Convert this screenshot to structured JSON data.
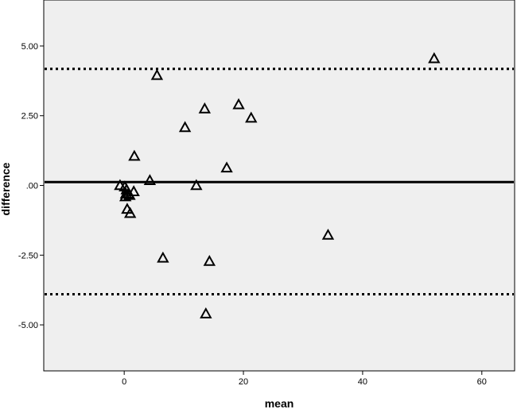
{
  "chart_data": {
    "type": "scatter",
    "title": "",
    "xlabel": "mean",
    "ylabel": "difference",
    "xlim": [
      -13.5,
      65.5
    ],
    "ylim": [
      -6.65,
      6.65
    ],
    "x_ticks": [
      {
        "value": 0,
        "label": "0"
      },
      {
        "value": 20,
        "label": "20"
      },
      {
        "value": 40,
        "label": "40"
      },
      {
        "value": 60,
        "label": "60"
      }
    ],
    "y_ticks": [
      {
        "value": 5,
        "label": "5.00"
      },
      {
        "value": 2.5,
        "label": "2.50"
      },
      {
        "value": 0,
        "label": ".00"
      },
      {
        "value": -2.5,
        "label": "-2.50"
      },
      {
        "value": -5,
        "label": "-5.00"
      }
    ],
    "grid": false,
    "marker": "triangle",
    "reference_lines": [
      {
        "style": "solid",
        "y": 0.12
      },
      {
        "style": "dotted",
        "y": 4.18
      },
      {
        "style": "dotted",
        "y": -3.9
      }
    ],
    "points": [
      {
        "x": 52.0,
        "y": 4.55
      },
      {
        "x": 5.5,
        "y": 3.95
      },
      {
        "x": 19.2,
        "y": 2.9
      },
      {
        "x": 13.5,
        "y": 2.75
      },
      {
        "x": 21.3,
        "y": 2.42
      },
      {
        "x": 10.2,
        "y": 2.08
      },
      {
        "x": 1.7,
        "y": 1.05
      },
      {
        "x": 17.2,
        "y": 0.63
      },
      {
        "x": 4.3,
        "y": 0.18
      },
      {
        "x": 12.1,
        "y": 0.0
      },
      {
        "x": -0.7,
        "y": 0.0
      },
      {
        "x": 0.1,
        "y": -0.05
      },
      {
        "x": 0.4,
        "y": -0.15
      },
      {
        "x": 1.6,
        "y": -0.22
      },
      {
        "x": 0.3,
        "y": -0.3
      },
      {
        "x": 0.7,
        "y": -0.3
      },
      {
        "x": 0.9,
        "y": -0.35
      },
      {
        "x": 0.2,
        "y": -0.4
      },
      {
        "x": 0.5,
        "y": -0.85
      },
      {
        "x": 1.0,
        "y": -1.0
      },
      {
        "x": 34.2,
        "y": -1.78
      },
      {
        "x": 6.5,
        "y": -2.6
      },
      {
        "x": 14.3,
        "y": -2.72
      },
      {
        "x": 13.7,
        "y": -4.6
      }
    ]
  }
}
